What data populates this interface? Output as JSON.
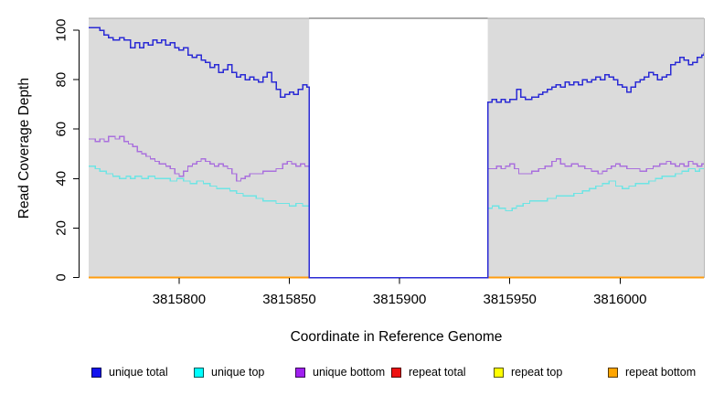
{
  "page": {
    "background": "#ffffff"
  },
  "chart_data": {
    "type": "line",
    "style": "step",
    "title": "",
    "xlabel": "Coordinate in Reference Genome",
    "ylabel": "Read Coverage Depth",
    "xlim": [
      3815759,
      3816038
    ],
    "ylim": [
      0,
      105
    ],
    "xticks": [
      3815800,
      3815850,
      3815900,
      3815950,
      3816000
    ],
    "yticks": [
      0,
      20,
      40,
      60,
      80,
      100
    ],
    "grid": false,
    "plot_background": "#dbdbdb",
    "gap_region": {
      "x_start": 3815859,
      "x_end": 3815940,
      "fill": "#ffffff"
    },
    "legend_position": "bottom",
    "legend": [
      {
        "label": "unique total",
        "color": "#1212ee"
      },
      {
        "label": "unique top",
        "color": "#00ffff"
      },
      {
        "label": "unique bottom",
        "color": "#a020f0"
      },
      {
        "label": "repeat total",
        "color": "#ee1111"
      },
      {
        "label": "repeat top",
        "color": "#ffff00"
      },
      {
        "label": "repeat bottom",
        "color": "#ffa500"
      }
    ],
    "series": [
      {
        "name": "repeat total",
        "color": "#ee1111",
        "width": 1.4,
        "layer": "below-gap",
        "points": [
          [
            3815759,
            0
          ],
          [
            3816038,
            0
          ]
        ]
      },
      {
        "name": "repeat top",
        "color": "#ffff00",
        "width": 1.4,
        "layer": "below-gap",
        "points": [
          [
            3815759,
            0
          ],
          [
            3816038,
            0
          ]
        ]
      },
      {
        "name": "repeat bottom",
        "color": "#ff9d0f",
        "width": 1.6,
        "layer": "below-gap",
        "points": [
          [
            3815759,
            0
          ],
          [
            3816038,
            0
          ]
        ]
      },
      {
        "name": "unique top",
        "color": "#6ee4e4",
        "width": 1.3,
        "layer": "above-gap",
        "points": [
          [
            3815759,
            45
          ],
          [
            3815762,
            44
          ],
          [
            3815764,
            43
          ],
          [
            3815767,
            42
          ],
          [
            3815770,
            41
          ],
          [
            3815773,
            40
          ],
          [
            3815776,
            41
          ],
          [
            3815778,
            40
          ],
          [
            3815780,
            41
          ],
          [
            3815783,
            40
          ],
          [
            3815786,
            41
          ],
          [
            3815789,
            40
          ],
          [
            3815793,
            40
          ],
          [
            3815796,
            39
          ],
          [
            3815799,
            40
          ],
          [
            3815802,
            39
          ],
          [
            3815805,
            38
          ],
          [
            3815808,
            39
          ],
          [
            3815811,
            38
          ],
          [
            3815814,
            37
          ],
          [
            3815817,
            36
          ],
          [
            3815820,
            36
          ],
          [
            3815823,
            35
          ],
          [
            3815826,
            34
          ],
          [
            3815829,
            33
          ],
          [
            3815832,
            33
          ],
          [
            3815835,
            32
          ],
          [
            3815838,
            31
          ],
          [
            3815841,
            31
          ],
          [
            3815844,
            30
          ],
          [
            3815847,
            30
          ],
          [
            3815850,
            29
          ],
          [
            3815853,
            30
          ],
          [
            3815856,
            29
          ],
          [
            3815859,
            0
          ],
          [
            3815940,
            28
          ],
          [
            3815942,
            29
          ],
          [
            3815945,
            28
          ],
          [
            3815948,
            27
          ],
          [
            3815951,
            28
          ],
          [
            3815953,
            29
          ],
          [
            3815956,
            30
          ],
          [
            3815959,
            31
          ],
          [
            3815963,
            31
          ],
          [
            3815967,
            32
          ],
          [
            3815971,
            33
          ],
          [
            3815975,
            33
          ],
          [
            3815979,
            34
          ],
          [
            3815983,
            35
          ],
          [
            3815986,
            36
          ],
          [
            3815989,
            37
          ],
          [
            3815992,
            38
          ],
          [
            3815995,
            39
          ],
          [
            3815998,
            37
          ],
          [
            3816001,
            36
          ],
          [
            3816004,
            37
          ],
          [
            3816007,
            38
          ],
          [
            3816010,
            38
          ],
          [
            3816013,
            39
          ],
          [
            3816016,
            40
          ],
          [
            3816019,
            41
          ],
          [
            3816022,
            41
          ],
          [
            3816025,
            42
          ],
          [
            3816028,
            43
          ],
          [
            3816031,
            44
          ],
          [
            3816034,
            43
          ],
          [
            3816036,
            44
          ],
          [
            3816038,
            44
          ]
        ]
      },
      {
        "name": "unique bottom",
        "color": "#aa70dd",
        "width": 1.3,
        "layer": "above-gap",
        "points": [
          [
            3815759,
            56
          ],
          [
            3815762,
            55
          ],
          [
            3815764,
            56
          ],
          [
            3815766,
            55
          ],
          [
            3815768,
            57
          ],
          [
            3815771,
            56
          ],
          [
            3815773,
            57
          ],
          [
            3815775,
            55
          ],
          [
            3815777,
            54
          ],
          [
            3815779,
            53
          ],
          [
            3815781,
            51
          ],
          [
            3815783,
            50
          ],
          [
            3815785,
            49
          ],
          [
            3815787,
            48
          ],
          [
            3815789,
            47
          ],
          [
            3815791,
            46
          ],
          [
            3815794,
            45
          ],
          [
            3815796,
            44
          ],
          [
            3815798,
            42
          ],
          [
            3815800,
            41
          ],
          [
            3815802,
            43
          ],
          [
            3815804,
            45
          ],
          [
            3815806,
            46
          ],
          [
            3815808,
            47
          ],
          [
            3815810,
            48
          ],
          [
            3815812,
            47
          ],
          [
            3815814,
            46
          ],
          [
            3815816,
            45
          ],
          [
            3815818,
            46
          ],
          [
            3815820,
            45
          ],
          [
            3815822,
            44
          ],
          [
            3815824,
            42
          ],
          [
            3815826,
            39
          ],
          [
            3815828,
            40
          ],
          [
            3815830,
            41
          ],
          [
            3815832,
            42
          ],
          [
            3815835,
            42
          ],
          [
            3815838,
            43
          ],
          [
            3815841,
            43
          ],
          [
            3815844,
            44
          ],
          [
            3815847,
            46
          ],
          [
            3815849,
            47
          ],
          [
            3815851,
            46
          ],
          [
            3815853,
            45
          ],
          [
            3815855,
            46
          ],
          [
            3815857,
            45
          ],
          [
            3815859,
            0
          ],
          [
            3815940,
            44
          ],
          [
            3815942,
            44
          ],
          [
            3815944,
            45
          ],
          [
            3815946,
            44
          ],
          [
            3815948,
            45
          ],
          [
            3815950,
            46
          ],
          [
            3815952,
            44
          ],
          [
            3815954,
            42
          ],
          [
            3815957,
            42
          ],
          [
            3815960,
            43
          ],
          [
            3815963,
            44
          ],
          [
            3815966,
            45
          ],
          [
            3815969,
            47
          ],
          [
            3815971,
            48
          ],
          [
            3815973,
            46
          ],
          [
            3815975,
            45
          ],
          [
            3815978,
            46
          ],
          [
            3815981,
            45
          ],
          [
            3815984,
            44
          ],
          [
            3815987,
            43
          ],
          [
            3815990,
            42
          ],
          [
            3815992,
            43
          ],
          [
            3815994,
            44
          ],
          [
            3815996,
            45
          ],
          [
            3815998,
            46
          ],
          [
            3816000,
            45
          ],
          [
            3816003,
            44
          ],
          [
            3816006,
            44
          ],
          [
            3816009,
            43
          ],
          [
            3816012,
            44
          ],
          [
            3816015,
            45
          ],
          [
            3816018,
            46
          ],
          [
            3816021,
            47
          ],
          [
            3816023,
            46
          ],
          [
            3816025,
            45
          ],
          [
            3816027,
            46
          ],
          [
            3816029,
            45
          ],
          [
            3816031,
            47
          ],
          [
            3816033,
            46
          ],
          [
            3816035,
            45
          ],
          [
            3816037,
            46
          ],
          [
            3816038,
            46
          ]
        ]
      },
      {
        "name": "unique total",
        "color": "#2b2bd5",
        "width": 1.5,
        "layer": "above-gap",
        "points": [
          [
            3815759,
            101
          ],
          [
            3815764,
            100
          ],
          [
            3815766,
            98
          ],
          [
            3815768,
            97
          ],
          [
            3815770,
            96
          ],
          [
            3815773,
            97
          ],
          [
            3815775,
            96
          ],
          [
            3815778,
            93
          ],
          [
            3815780,
            95
          ],
          [
            3815782,
            93
          ],
          [
            3815784,
            95
          ],
          [
            3815786,
            94
          ],
          [
            3815788,
            96
          ],
          [
            3815790,
            95
          ],
          [
            3815792,
            96
          ],
          [
            3815794,
            94
          ],
          [
            3815796,
            95
          ],
          [
            3815798,
            93
          ],
          [
            3815800,
            92
          ],
          [
            3815802,
            93
          ],
          [
            3815804,
            90
          ],
          [
            3815806,
            89
          ],
          [
            3815808,
            90
          ],
          [
            3815810,
            88
          ],
          [
            3815812,
            87
          ],
          [
            3815814,
            85
          ],
          [
            3815816,
            86
          ],
          [
            3815818,
            83
          ],
          [
            3815820,
            84
          ],
          [
            3815822,
            86
          ],
          [
            3815824,
            83
          ],
          [
            3815826,
            81
          ],
          [
            3815828,
            82
          ],
          [
            3815830,
            80
          ],
          [
            3815832,
            81
          ],
          [
            3815834,
            80
          ],
          [
            3815836,
            79
          ],
          [
            3815838,
            81
          ],
          [
            3815840,
            83
          ],
          [
            3815842,
            79
          ],
          [
            3815844,
            76
          ],
          [
            3815846,
            73
          ],
          [
            3815848,
            74
          ],
          [
            3815850,
            75
          ],
          [
            3815852,
            74
          ],
          [
            3815854,
            76
          ],
          [
            3815856,
            78
          ],
          [
            3815858,
            77
          ],
          [
            3815859,
            0
          ],
          [
            3815940,
            71
          ],
          [
            3815942,
            72
          ],
          [
            3815944,
            71
          ],
          [
            3815946,
            72
          ],
          [
            3815948,
            71
          ],
          [
            3815950,
            72
          ],
          [
            3815953,
            76
          ],
          [
            3815955,
            73
          ],
          [
            3815957,
            72
          ],
          [
            3815960,
            73
          ],
          [
            3815963,
            74
          ],
          [
            3815965,
            75
          ],
          [
            3815967,
            76
          ],
          [
            3815969,
            77
          ],
          [
            3815971,
            78
          ],
          [
            3815973,
            77
          ],
          [
            3815975,
            79
          ],
          [
            3815977,
            78
          ],
          [
            3815979,
            79
          ],
          [
            3815981,
            78
          ],
          [
            3815983,
            80
          ],
          [
            3815985,
            79
          ],
          [
            3815987,
            80
          ],
          [
            3815989,
            81
          ],
          [
            3815991,
            80
          ],
          [
            3815993,
            82
          ],
          [
            3815995,
            81
          ],
          [
            3815997,
            80
          ],
          [
            3815999,
            78
          ],
          [
            3816001,
            77
          ],
          [
            3816003,
            75
          ],
          [
            3816005,
            77
          ],
          [
            3816007,
            79
          ],
          [
            3816009,
            80
          ],
          [
            3816011,
            81
          ],
          [
            3816013,
            83
          ],
          [
            3816015,
            82
          ],
          [
            3816017,
            80
          ],
          [
            3816019,
            81
          ],
          [
            3816021,
            82
          ],
          [
            3816023,
            86
          ],
          [
            3816025,
            87
          ],
          [
            3816027,
            89
          ],
          [
            3816029,
            88
          ],
          [
            3816031,
            86
          ],
          [
            3816033,
            87
          ],
          [
            3816035,
            89
          ],
          [
            3816037,
            90
          ],
          [
            3816038,
            91
          ]
        ]
      }
    ]
  }
}
